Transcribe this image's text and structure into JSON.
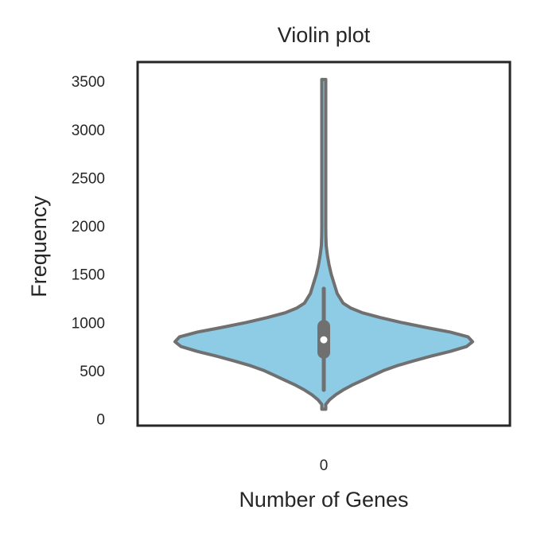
{
  "chart_data": {
    "type": "violin",
    "title": "Violin plot",
    "xlabel": "Number of Genes",
    "ylabel": "Frequency",
    "categories": [
      "0"
    ],
    "ylim": [
      -70,
      3700
    ],
    "yticks": [
      0,
      500,
      1000,
      1500,
      2000,
      2500,
      3000,
      3500
    ],
    "grid": false,
    "legend": "none",
    "colors": {
      "fill": "#8ecce6",
      "outline": "#707070",
      "median": "#ffffff",
      "frame": "#262626"
    },
    "violin": {
      "category": "0",
      "min": 100,
      "max": 3520,
      "q1": 690,
      "median": 820,
      "q3": 960,
      "whisker_low": 300,
      "whisker_high": 1350,
      "density": [
        {
          "y": 100,
          "w": 0.0
        },
        {
          "y": 150,
          "w": 0.01
        },
        {
          "y": 200,
          "w": 0.04
        },
        {
          "y": 250,
          "w": 0.08
        },
        {
          "y": 300,
          "w": 0.13
        },
        {
          "y": 350,
          "w": 0.19
        },
        {
          "y": 400,
          "w": 0.26
        },
        {
          "y": 450,
          "w": 0.33
        },
        {
          "y": 500,
          "w": 0.4
        },
        {
          "y": 550,
          "w": 0.49
        },
        {
          "y": 600,
          "w": 0.6
        },
        {
          "y": 650,
          "w": 0.72
        },
        {
          "y": 700,
          "w": 0.85
        },
        {
          "y": 750,
          "w": 0.96
        },
        {
          "y": 800,
          "w": 1.0
        },
        {
          "y": 850,
          "w": 0.97
        },
        {
          "y": 900,
          "w": 0.85
        },
        {
          "y": 950,
          "w": 0.68
        },
        {
          "y": 1000,
          "w": 0.52
        },
        {
          "y": 1050,
          "w": 0.38
        },
        {
          "y": 1100,
          "w": 0.26
        },
        {
          "y": 1150,
          "w": 0.18
        },
        {
          "y": 1200,
          "w": 0.13
        },
        {
          "y": 1300,
          "w": 0.09
        },
        {
          "y": 1400,
          "w": 0.07
        },
        {
          "y": 1500,
          "w": 0.05
        },
        {
          "y": 1600,
          "w": 0.035
        },
        {
          "y": 1700,
          "w": 0.024
        },
        {
          "y": 1800,
          "w": 0.016
        },
        {
          "y": 1900,
          "w": 0.014
        },
        {
          "y": 2000,
          "w": 0.011
        },
        {
          "y": 2100,
          "w": 0.008
        },
        {
          "y": 2200,
          "w": 0.006
        },
        {
          "y": 2400,
          "w": 0.005
        },
        {
          "y": 2700,
          "w": 0.005
        },
        {
          "y": 3000,
          "w": 0.005
        },
        {
          "y": 3300,
          "w": 0.005
        },
        {
          "y": 3520,
          "w": 0.0
        }
      ]
    }
  }
}
